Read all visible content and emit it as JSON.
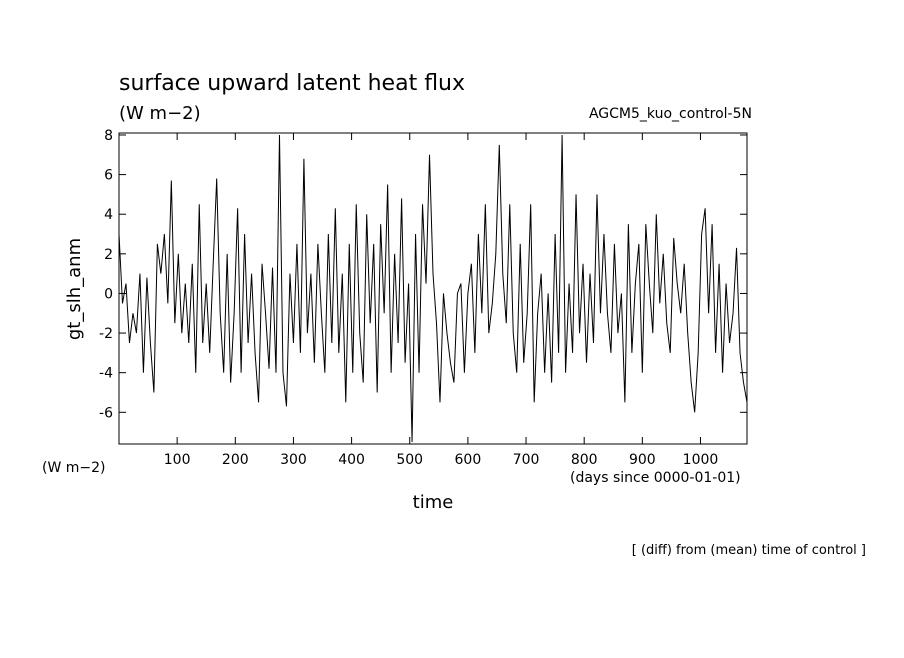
{
  "chart_data": {
    "type": "line",
    "title": "surface upward latent heat flux",
    "subtitle": "(W m−2)",
    "label_right": "AGCM5_kuo_control-5N",
    "y_label": "gt_slh_anm",
    "y_unit": "(W m−2)",
    "x_unit": "(days since 0000-01-01)",
    "x_label": "time",
    "footnote": "[ (diff) from (mean) time of control ]",
    "xlim": [
      0,
      1080
    ],
    "ylim": [
      -7.6,
      8.1
    ],
    "xticks": [
      100,
      200,
      300,
      400,
      500,
      600,
      700,
      800,
      900,
      1000
    ],
    "yticks": [
      -6,
      -4,
      -2,
      0,
      2,
      4,
      6,
      8
    ],
    "x": [
      0,
      6,
      12,
      18,
      24,
      30,
      36,
      42,
      48,
      54,
      60,
      66,
      72,
      78,
      84,
      90,
      96,
      102,
      108,
      114,
      120,
      126,
      132,
      138,
      144,
      150,
      156,
      162,
      168,
      174,
      180,
      186,
      192,
      198,
      204,
      210,
      216,
      222,
      228,
      234,
      240,
      246,
      252,
      258,
      264,
      270,
      276,
      282,
      288,
      294,
      300,
      306,
      312,
      318,
      324,
      330,
      336,
      342,
      348,
      354,
      360,
      366,
      372,
      378,
      384,
      390,
      396,
      402,
      408,
      414,
      420,
      426,
      432,
      438,
      444,
      450,
      456,
      462,
      468,
      474,
      480,
      486,
      492,
      498,
      504,
      510,
      516,
      522,
      528,
      534,
      540,
      546,
      552,
      558,
      564,
      570,
      576,
      582,
      588,
      594,
      600,
      606,
      612,
      618,
      624,
      630,
      636,
      642,
      648,
      654,
      660,
      666,
      672,
      678,
      684,
      690,
      696,
      702,
      708,
      714,
      720,
      726,
      732,
      738,
      744,
      750,
      756,
      762,
      768,
      774,
      780,
      786,
      792,
      798,
      804,
      810,
      816,
      822,
      828,
      834,
      840,
      846,
      852,
      858,
      864,
      870,
      876,
      882,
      888,
      894,
      900,
      906,
      912,
      918,
      924,
      930,
      936,
      942,
      948,
      954,
      960,
      966,
      972,
      978,
      984,
      990,
      996,
      1002,
      1008,
      1014,
      1020,
      1026,
      1032,
      1038,
      1044,
      1050,
      1056,
      1062,
      1068,
      1074,
      1080
    ],
    "series": [
      {
        "color": "#000000",
        "values": [
          3,
          -0.5,
          0.5,
          -2.5,
          -1,
          -2,
          1,
          -4,
          0.8,
          -2.5,
          -5,
          2.5,
          1,
          3,
          -0.5,
          5.7,
          -1.5,
          2,
          -2,
          0.5,
          -2.5,
          1.5,
          -4,
          4.5,
          -2.5,
          0.5,
          -3,
          1.5,
          5.8,
          -1,
          -4,
          2,
          -4.5,
          -1,
          4.3,
          -4,
          3,
          -2.5,
          1,
          -3,
          -5.5,
          1.5,
          -1,
          -3.8,
          1.3,
          -4,
          8,
          -4,
          -5.7,
          1,
          -2.5,
          2.5,
          -3,
          6.8,
          -2,
          1,
          -3.5,
          2.5,
          -1,
          -4,
          3,
          -2.5,
          4.3,
          -3,
          1,
          -5.5,
          2.5,
          -4,
          4.5,
          -2,
          -4.5,
          4,
          -1.5,
          2.5,
          -5,
          3.5,
          -1,
          5.5,
          -4,
          2,
          -2.5,
          4.8,
          -3.5,
          0.5,
          -7.5,
          3,
          -4,
          4.5,
          0.5,
          7,
          1,
          -1.5,
          -5.5,
          0,
          -2,
          -3.5,
          -4.5,
          0,
          0.5,
          -4,
          0,
          1.5,
          -3,
          3,
          -1,
          4.5,
          -2,
          -0.5,
          2,
          7.5,
          1,
          -1.5,
          4.5,
          -2,
          -4,
          2.5,
          -3.5,
          -1,
          4.5,
          -5.5,
          -1,
          1,
          -4,
          0,
          -4.5,
          3,
          -3,
          8,
          -4,
          0.5,
          -3,
          5,
          -2,
          1.5,
          -3.5,
          1,
          -2.5,
          5,
          -1,
          3,
          -1,
          -3,
          2.5,
          -2,
          0,
          -5.5,
          3.5,
          -3,
          0.5,
          2.5,
          -4,
          3.5,
          0.5,
          -2,
          4,
          -0.5,
          2,
          -1.5,
          -3,
          2.8,
          0.5,
          -1,
          1.5,
          -2,
          -4.5,
          -6,
          -3,
          3,
          4.3,
          -1,
          3.5,
          -3,
          1.5,
          -4,
          0.5,
          -2.5,
          -1,
          2.3,
          -3,
          -4.5,
          -5.5
        ]
      }
    ]
  }
}
